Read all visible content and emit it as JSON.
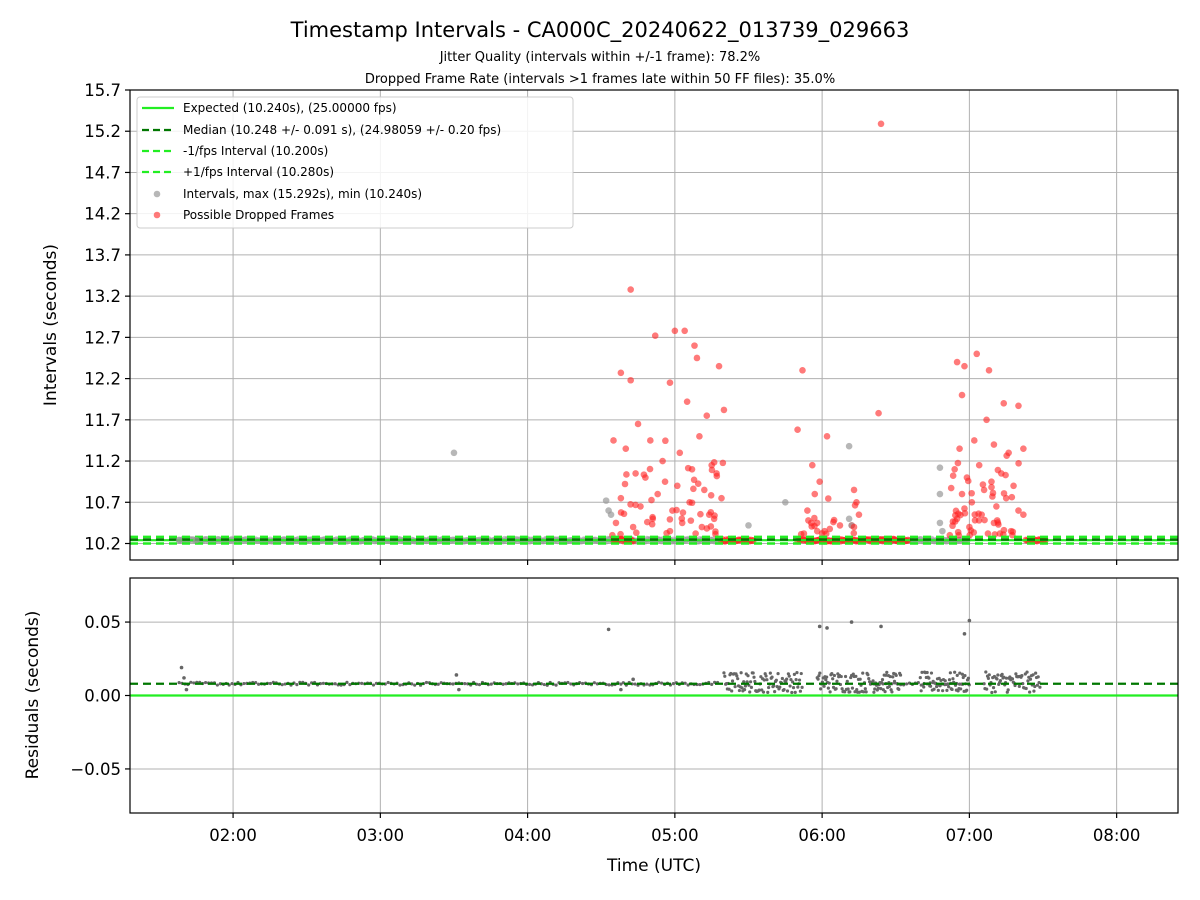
{
  "chart_data": [
    {
      "type": "scatter",
      "title": "Timestamp Intervals - CA000C_20240622_013739_029663",
      "subtitle_1": "Jitter Quality (intervals within +/-1 frame): 78.2%",
      "subtitle_2": "Dropped Frame Rate (intervals >1 frames late within 50 FF files): 35.0%",
      "xlabel": "",
      "ylabel": "Intervals (seconds)",
      "x_range": [
        "01:18",
        "08:25"
      ],
      "ylim": [
        10.0,
        15.7
      ],
      "y_ticks": [
        "10.2",
        "10.7",
        "11.2",
        "11.7",
        "12.2",
        "12.7",
        "13.2",
        "13.7",
        "14.2",
        "14.7",
        "15.2",
        "15.7"
      ],
      "grid": true,
      "legend_position": "top-left",
      "lines": [
        {
          "name": "Expected (10.240s), (25.00000 fps)",
          "y": 10.24,
          "style": "solid",
          "color": "#22ee22"
        },
        {
          "name": "Median (10.248 +/- 0.091 s), (24.98059 +/- 0.20 fps)",
          "y": 10.248,
          "style": "dashed",
          "color": "#007700"
        },
        {
          "name": "-1/fps Interval (10.200s)",
          "y": 10.2,
          "style": "dashed",
          "color": "#22ee22"
        },
        {
          "name": "+1/fps Interval (10.280s)",
          "y": 10.28,
          "style": "dashed",
          "color": "#22ee22"
        }
      ],
      "series": [
        {
          "name": "Intervals, max (15.292s), min (10.240s)",
          "color": "#999999",
          "points": [
            [
              "01:38",
              10.24
            ],
            [
              "01:45",
              10.24
            ],
            [
              "03:30",
              11.3
            ],
            [
              "04:32",
              10.72
            ],
            [
              "04:33",
              10.6
            ],
            [
              "04:34",
              10.55
            ],
            [
              "05:30",
              10.42
            ],
            [
              "05:45",
              10.7
            ],
            [
              "06:11",
              11.38
            ],
            [
              "06:11",
              10.5
            ],
            [
              "06:12",
              10.42
            ],
            [
              "06:48",
              11.12
            ],
            [
              "06:48",
              10.8
            ],
            [
              "06:48",
              10.45
            ],
            [
              "06:49",
              10.35
            ]
          ]
        },
        {
          "name": "Possible Dropped Frames",
          "color": "#ff2222",
          "points": [
            [
              "04:42",
              13.28
            ],
            [
              "04:52",
              12.72
            ],
            [
              "05:00",
              12.78
            ],
            [
              "05:04",
              12.78
            ],
            [
              "05:08",
              12.6
            ],
            [
              "05:09",
              12.45
            ],
            [
              "05:18",
              12.35
            ],
            [
              "04:38",
              12.27
            ],
            [
              "04:42",
              12.18
            ],
            [
              "04:58",
              12.15
            ],
            [
              "04:45",
              11.65
            ],
            [
              "05:05",
              11.92
            ],
            [
              "05:13",
              11.75
            ],
            [
              "05:20",
              11.82
            ],
            [
              "04:35",
              11.45
            ],
            [
              "04:40",
              11.35
            ],
            [
              "04:50",
              11.45
            ],
            [
              "04:55",
              11.2
            ],
            [
              "05:02",
              11.3
            ],
            [
              "05:10",
              11.5
            ],
            [
              "05:15",
              11.15
            ],
            [
              "04:44",
              11.05
            ],
            [
              "04:48",
              11.0
            ],
            [
              "04:56",
              10.95
            ],
            [
              "05:01",
              10.9
            ],
            [
              "05:07",
              11.1
            ],
            [
              "05:12",
              10.85
            ],
            [
              "05:17",
              11.05
            ],
            [
              "04:38",
              10.75
            ],
            [
              "04:46",
              10.65
            ],
            [
              "04:53",
              10.8
            ],
            [
              "04:59",
              10.6
            ],
            [
              "05:06",
              10.7
            ],
            [
              "05:14",
              10.55
            ],
            [
              "05:19",
              10.75
            ],
            [
              "04:36",
              10.45
            ],
            [
              "04:43",
              10.4
            ],
            [
              "04:51",
              10.5
            ],
            [
              "04:58",
              10.35
            ],
            [
              "05:03",
              10.45
            ],
            [
              "05:11",
              10.4
            ],
            [
              "05:16",
              10.5
            ],
            [
              "05:52",
              12.3
            ],
            [
              "05:50",
              11.58
            ],
            [
              "06:02",
              11.5
            ],
            [
              "05:56",
              11.15
            ],
            [
              "05:59",
              10.95
            ],
            [
              "05:57",
              10.8
            ],
            [
              "05:54",
              10.6
            ],
            [
              "05:58",
              10.45
            ],
            [
              "06:01",
              10.35
            ],
            [
              "06:13",
              10.85
            ],
            [
              "06:14",
              10.7
            ],
            [
              "06:15",
              10.55
            ],
            [
              "06:13",
              10.4
            ],
            [
              "06:24",
              15.29
            ],
            [
              "06:23",
              11.78
            ],
            [
              "06:55",
              12.4
            ],
            [
              "06:58",
              12.35
            ],
            [
              "07:03",
              12.5
            ],
            [
              "07:08",
              12.3
            ],
            [
              "06:57",
              12.0
            ],
            [
              "07:14",
              11.9
            ],
            [
              "07:20",
              11.87
            ],
            [
              "07:07",
              11.7
            ],
            [
              "06:56",
              11.35
            ],
            [
              "07:02",
              11.45
            ],
            [
              "07:10",
              11.4
            ],
            [
              "07:16",
              11.3
            ],
            [
              "07:22",
              11.35
            ],
            [
              "06:54",
              11.1
            ],
            [
              "06:59",
              11.0
            ],
            [
              "07:04",
              11.15
            ],
            [
              "07:09",
              10.95
            ],
            [
              "07:13",
              11.05
            ],
            [
              "07:18",
              10.9
            ],
            [
              "06:57",
              10.8
            ],
            [
              "07:01",
              10.7
            ],
            [
              "07:06",
              10.85
            ],
            [
              "07:11",
              10.65
            ],
            [
              "07:15",
              10.75
            ],
            [
              "07:20",
              10.6
            ],
            [
              "06:55",
              10.5
            ],
            [
              "07:00",
              10.4
            ],
            [
              "07:05",
              10.55
            ],
            [
              "07:10",
              10.45
            ],
            [
              "07:17",
              10.35
            ],
            [
              "07:22",
              10.55
            ]
          ]
        }
      ]
    },
    {
      "type": "scatter",
      "xlabel": "Time (UTC)",
      "ylabel": "Residuals (seconds)",
      "x_range": [
        "01:18",
        "08:25"
      ],
      "x_ticks": [
        "02:00",
        "03:00",
        "04:00",
        "05:00",
        "06:00",
        "07:00",
        "08:00"
      ],
      "ylim": [
        -0.08,
        0.08
      ],
      "y_ticks": [
        "−0.05",
        "0.00",
        "0.05"
      ],
      "grid": true,
      "lines": [
        {
          "name": "Expected",
          "y": 0.0,
          "style": "solid",
          "color": "#22ee22"
        },
        {
          "name": "Median",
          "y": 0.008,
          "style": "dashed",
          "color": "#007700"
        }
      ],
      "series": [
        {
          "name": "Residuals",
          "color": "#666666",
          "points": [
            [
              "01:39",
              0.019
            ],
            [
              "01:40",
              0.012
            ],
            [
              "01:41",
              0.004
            ],
            [
              "03:31",
              0.014
            ],
            [
              "03:32",
              0.004
            ],
            [
              "04:33",
              0.045
            ],
            [
              "04:38",
              0.004
            ],
            [
              "04:43",
              0.011
            ],
            [
              "05:59",
              0.047
            ],
            [
              "06:02",
              0.046
            ],
            [
              "06:12",
              0.05
            ],
            [
              "06:24",
              0.047
            ],
            [
              "06:58",
              0.042
            ],
            [
              "07:00",
              0.051
            ]
          ]
        }
      ]
    }
  ]
}
